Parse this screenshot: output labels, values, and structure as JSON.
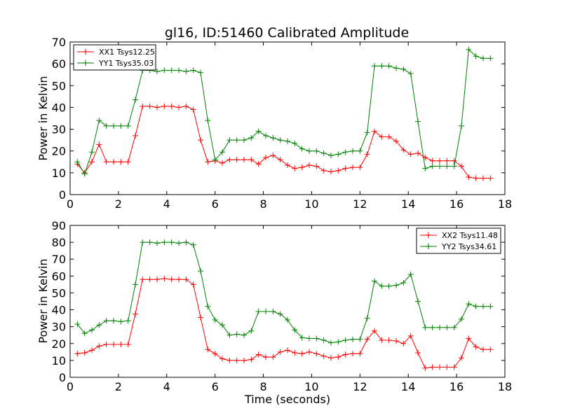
{
  "chart_data": [
    {
      "type": "line",
      "title": "gl16, ID:51460 Calibrated Amplitude",
      "xlabel": "",
      "ylabel": "Power in Kelvin",
      "xlim": [
        0,
        18
      ],
      "ylim": [
        0,
        70
      ],
      "xticks": [
        0,
        2,
        4,
        6,
        8,
        10,
        12,
        14,
        16,
        18
      ],
      "yticks": [
        0,
        10,
        20,
        30,
        40,
        50,
        60,
        70
      ],
      "grid": false,
      "legend": "top-left",
      "x": [
        0.3,
        0.6,
        0.9,
        1.2,
        1.5,
        1.8,
        2.1,
        2.4,
        2.7,
        3.0,
        3.3,
        3.6,
        3.9,
        4.2,
        4.5,
        4.8,
        5.1,
        5.4,
        5.7,
        6.0,
        6.3,
        6.6,
        6.9,
        7.2,
        7.5,
        7.8,
        8.1,
        8.4,
        8.7,
        9.0,
        9.3,
        9.6,
        9.9,
        10.2,
        10.5,
        10.8,
        11.1,
        11.4,
        11.7,
        12.0,
        12.3,
        12.6,
        12.9,
        13.2,
        13.5,
        13.8,
        14.1,
        14.4,
        14.7,
        15.0,
        15.3,
        15.6,
        15.9,
        16.2,
        16.5,
        16.8,
        17.1,
        17.4
      ],
      "series": [
        {
          "name": "XX1 Tsys12.25",
          "color": "#ff0000",
          "values": [
            14,
            10,
            15,
            23,
            15,
            15,
            15,
            15,
            27,
            40.5,
            40.5,
            40,
            40.5,
            40.5,
            40,
            40.5,
            39,
            25,
            15,
            15.5,
            14.5,
            16,
            16,
            16,
            16,
            14,
            17,
            18,
            16,
            13.5,
            12,
            12.5,
            13.5,
            13,
            11,
            10.5,
            11,
            12,
            12.5,
            12.5,
            18.5,
            29,
            26.5,
            26.5,
            24.5,
            20.5,
            18.5,
            19,
            17,
            15.5,
            15.5,
            15.5,
            15.5,
            13,
            8,
            7.5,
            7.5,
            7.5
          ]
        },
        {
          "name": "YY1 Tsys35.03",
          "color": "#008000",
          "values": [
            15,
            9.5,
            19.5,
            34,
            31.5,
            31.5,
            31.5,
            31.5,
            43.5,
            57,
            57,
            56.5,
            57,
            57,
            57,
            56.5,
            57,
            56,
            34,
            16,
            19.5,
            25,
            25,
            25,
            26,
            29,
            27,
            26,
            25,
            24.5,
            23.5,
            21,
            20,
            20,
            19,
            18,
            18.5,
            19.5,
            20,
            20,
            28.5,
            59,
            59,
            59,
            58,
            57.5,
            55.5,
            33.5,
            12,
            13,
            13,
            13,
            13,
            31.5,
            66.5,
            63.5,
            62.5,
            62.5
          ]
        }
      ]
    },
    {
      "type": "line",
      "title": "",
      "xlabel": "Time (seconds)",
      "ylabel": "Power in Kelvin",
      "xlim": [
        0,
        18
      ],
      "ylim": [
        0,
        90
      ],
      "xticks": [
        0,
        2,
        4,
        6,
        8,
        10,
        12,
        14,
        16,
        18
      ],
      "yticks": [
        0,
        10,
        20,
        30,
        40,
        50,
        60,
        70,
        80,
        90
      ],
      "grid": false,
      "legend": "top-right",
      "x": [
        0.3,
        0.6,
        0.9,
        1.2,
        1.5,
        1.8,
        2.1,
        2.4,
        2.7,
        3.0,
        3.3,
        3.6,
        3.9,
        4.2,
        4.5,
        4.8,
        5.1,
        5.4,
        5.7,
        6.0,
        6.3,
        6.6,
        6.9,
        7.2,
        7.5,
        7.8,
        8.1,
        8.4,
        8.7,
        9.0,
        9.3,
        9.6,
        9.9,
        10.2,
        10.5,
        10.8,
        11.1,
        11.4,
        11.7,
        12.0,
        12.3,
        12.6,
        12.9,
        13.2,
        13.5,
        13.8,
        14.1,
        14.4,
        14.7,
        15.0,
        15.3,
        15.6,
        15.9,
        16.2,
        16.5,
        16.8,
        17.1,
        17.4
      ],
      "series": [
        {
          "name": "XX2 Tsys11.48",
          "color": "#ff0000",
          "values": [
            14,
            14.5,
            16,
            18.5,
            19.5,
            19.5,
            19.5,
            19.5,
            37.5,
            58,
            58,
            58,
            58.5,
            58,
            58,
            58,
            55,
            35.5,
            16.5,
            14,
            11,
            10,
            10,
            10,
            10.5,
            13.5,
            12,
            12,
            15,
            16,
            14.5,
            14,
            15,
            14,
            12.5,
            11.5,
            12,
            13.5,
            14,
            14,
            22.5,
            27.5,
            22,
            22,
            21.5,
            20,
            24.5,
            14.5,
            5.5,
            6,
            6,
            6,
            6,
            11.5,
            23,
            18,
            16.5,
            16.5
          ]
        },
        {
          "name": "YY2 Tsys34.61",
          "color": "#008000",
          "values": [
            31.5,
            26,
            28,
            31,
            33.5,
            33.5,
            33,
            33.5,
            55,
            80,
            80,
            79.5,
            80,
            80,
            79.5,
            80,
            78.5,
            63,
            42,
            34,
            31,
            25,
            25.5,
            25,
            27.5,
            39,
            39,
            39,
            37.5,
            34,
            28,
            23.5,
            23,
            23,
            22,
            20.5,
            21,
            22,
            22.5,
            22.5,
            35,
            57,
            54,
            54,
            54.5,
            56,
            61,
            45,
            29.5,
            29.5,
            29.5,
            29.5,
            29.5,
            34.5,
            43.5,
            42,
            42,
            42
          ]
        }
      ]
    }
  ]
}
